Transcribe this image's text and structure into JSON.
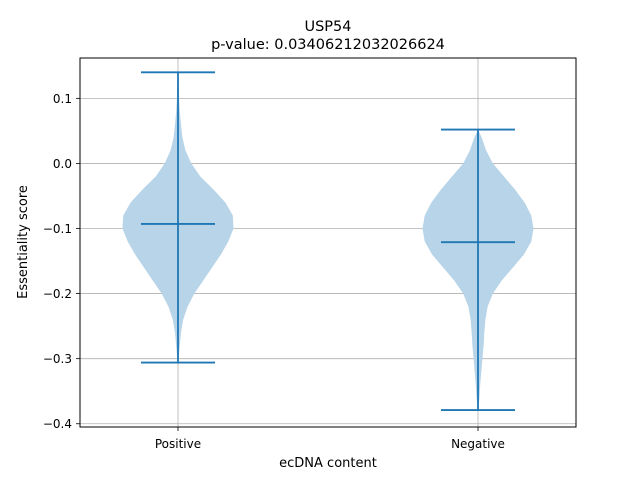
{
  "chart_data": {
    "type": "violin",
    "title": "USP54",
    "subtitle": "p-value: 0.03406212032026624",
    "xlabel": "ecDNA content",
    "ylabel": "Essentiality score",
    "categories": [
      "Positive",
      "Negative"
    ],
    "ylim": [
      -0.405,
      0.162
    ],
    "yticks": [
      -0.4,
      -0.3,
      -0.2,
      -0.1,
      0.0,
      0.1
    ],
    "ytick_labels": [
      "−0.4",
      "−0.3",
      "−0.2",
      "−0.1",
      "0.0",
      "0.1"
    ],
    "grid": true,
    "colors": {
      "body": "#b8d4e9",
      "line": "#1f77b4"
    },
    "violins": [
      {
        "category": "Positive",
        "max": 0.14,
        "median": -0.093,
        "min": -0.306,
        "profile": [
          [
            0.14,
            0.0
          ],
          [
            0.12,
            0.01
          ],
          [
            0.1,
            0.015
          ],
          [
            0.08,
            0.025
          ],
          [
            0.06,
            0.04
          ],
          [
            0.04,
            0.06
          ],
          [
            0.02,
            0.1
          ],
          [
            0.0,
            0.18
          ],
          [
            -0.02,
            0.3
          ],
          [
            -0.04,
            0.48
          ],
          [
            -0.06,
            0.64
          ],
          [
            -0.08,
            0.74
          ],
          [
            -0.1,
            0.75
          ],
          [
            -0.12,
            0.68
          ],
          [
            -0.14,
            0.58
          ],
          [
            -0.16,
            0.46
          ],
          [
            -0.18,
            0.34
          ],
          [
            -0.2,
            0.22
          ],
          [
            -0.22,
            0.13
          ],
          [
            -0.24,
            0.07
          ],
          [
            -0.26,
            0.04
          ],
          [
            -0.28,
            0.025
          ],
          [
            -0.3,
            0.01
          ],
          [
            -0.306,
            0.0
          ]
        ]
      },
      {
        "category": "Negative",
        "max": 0.052,
        "median": -0.121,
        "min": -0.379,
        "profile": [
          [
            0.052,
            0.0
          ],
          [
            0.04,
            0.05
          ],
          [
            0.02,
            0.11
          ],
          [
            0.0,
            0.2
          ],
          [
            -0.02,
            0.35
          ],
          [
            -0.04,
            0.5
          ],
          [
            -0.06,
            0.63
          ],
          [
            -0.08,
            0.72
          ],
          [
            -0.1,
            0.75
          ],
          [
            -0.12,
            0.72
          ],
          [
            -0.14,
            0.62
          ],
          [
            -0.16,
            0.47
          ],
          [
            -0.18,
            0.32
          ],
          [
            -0.2,
            0.2
          ],
          [
            -0.22,
            0.13
          ],
          [
            -0.24,
            0.1
          ],
          [
            -0.26,
            0.085
          ],
          [
            -0.28,
            0.075
          ],
          [
            -0.3,
            0.06
          ],
          [
            -0.32,
            0.045
          ],
          [
            -0.34,
            0.03
          ],
          [
            -0.36,
            0.02
          ],
          [
            -0.379,
            0.0
          ]
        ]
      }
    ]
  }
}
